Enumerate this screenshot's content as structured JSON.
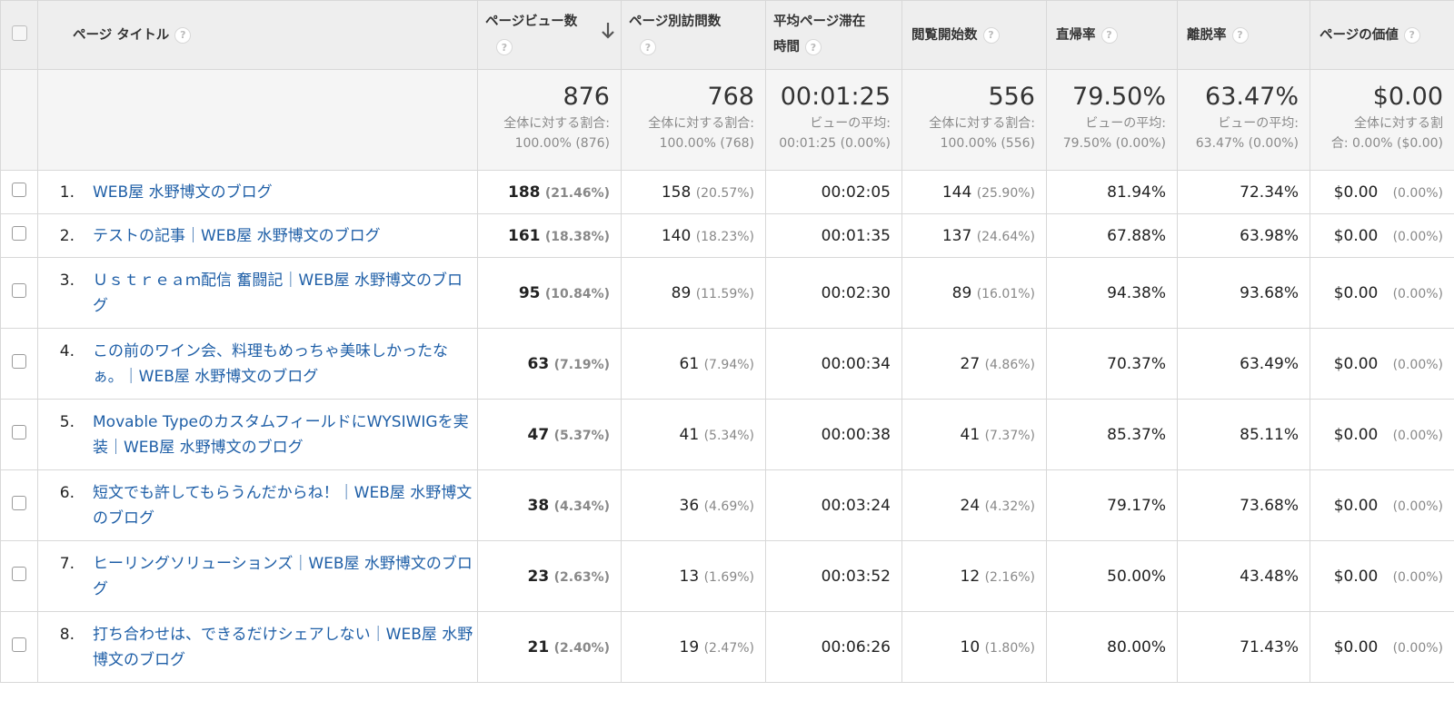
{
  "headers": {
    "page_title": "ページ タイトル",
    "pageviews": "ページビュー数",
    "unique_pageviews": "ページ別訪問数",
    "avg_time_line1": "平均ページ滞在",
    "avg_time_line2": "時間",
    "entrances": "閲覧開始数",
    "bounce_rate": "直帰率",
    "exit_rate": "離脱率",
    "page_value": "ページの価値",
    "help_symbol": "?"
  },
  "summary": {
    "pageviews": {
      "value": "876",
      "sub1": "全体に対する割合:",
      "sub2": "100.00% (876)"
    },
    "unique_pageviews": {
      "value": "768",
      "sub1": "全体に対する割合:",
      "sub2": "100.00% (768)"
    },
    "avg_time": {
      "value": "00:01:25",
      "sub1": "ビューの平均:",
      "sub2": "00:01:25 (0.00%)"
    },
    "entrances": {
      "value": "556",
      "sub1": "全体に対する割合:",
      "sub2": "100.00% (556)"
    },
    "bounce_rate": {
      "value": "79.50%",
      "sub1": "ビューの平均:",
      "sub2": "79.50% (0.00%)"
    },
    "exit_rate": {
      "value": "63.47%",
      "sub1": "ビューの平均:",
      "sub2": "63.47% (0.00%)"
    },
    "page_value": {
      "value": "$0.00",
      "sub1": "全体に対する割",
      "sub2": "合: 0.00% ($0.00)"
    }
  },
  "rows": [
    {
      "idx": "1.",
      "title": "WEB屋 水野博文のブログ",
      "pv": "188",
      "pv_pct": "(21.46%)",
      "upv": "158",
      "upv_pct": "(20.57%)",
      "time": "00:02:05",
      "ent": "144",
      "ent_pct": "(25.90%)",
      "bounce": "81.94%",
      "exit": "72.34%",
      "value": "$0.00",
      "value_pct": "(0.00%)"
    },
    {
      "idx": "2.",
      "title": "テストの記事｜WEB屋 水野博文のブログ",
      "pv": "161",
      "pv_pct": "(18.38%)",
      "upv": "140",
      "upv_pct": "(18.23%)",
      "time": "00:01:35",
      "ent": "137",
      "ent_pct": "(24.64%)",
      "bounce": "67.88%",
      "exit": "63.98%",
      "value": "$0.00",
      "value_pct": "(0.00%)"
    },
    {
      "idx": "3.",
      "title": "Ｕｓｔｒｅａｍ配信 奮闘記｜WEB屋 水野博文のブログ",
      "pv": "95",
      "pv_pct": "(10.84%)",
      "upv": "89",
      "upv_pct": "(11.59%)",
      "time": "00:02:30",
      "ent": "89",
      "ent_pct": "(16.01%)",
      "bounce": "94.38%",
      "exit": "93.68%",
      "value": "$0.00",
      "value_pct": "(0.00%)"
    },
    {
      "idx": "4.",
      "title": "この前のワイン会、料理もめっちゃ美味しかったなぁ。｜WEB屋 水野博文のブログ",
      "pv": "63",
      "pv_pct": "(7.19%)",
      "upv": "61",
      "upv_pct": "(7.94%)",
      "time": "00:00:34",
      "ent": "27",
      "ent_pct": "(4.86%)",
      "bounce": "70.37%",
      "exit": "63.49%",
      "value": "$0.00",
      "value_pct": "(0.00%)"
    },
    {
      "idx": "5.",
      "title": "Movable TypeのカスタムフィールドにWYSIWIGを実装｜WEB屋 水野博文のブログ",
      "pv": "47",
      "pv_pct": "(5.37%)",
      "upv": "41",
      "upv_pct": "(5.34%)",
      "time": "00:00:38",
      "ent": "41",
      "ent_pct": "(7.37%)",
      "bounce": "85.37%",
      "exit": "85.11%",
      "value": "$0.00",
      "value_pct": "(0.00%)"
    },
    {
      "idx": "6.",
      "title": "短文でも許してもらうんだからね！｜WEB屋 水野博文のブログ",
      "pv": "38",
      "pv_pct": "(4.34%)",
      "upv": "36",
      "upv_pct": "(4.69%)",
      "time": "00:03:24",
      "ent": "24",
      "ent_pct": "(4.32%)",
      "bounce": "79.17%",
      "exit": "73.68%",
      "value": "$0.00",
      "value_pct": "(0.00%)"
    },
    {
      "idx": "7.",
      "title": "ヒーリングソリューションズ｜WEB屋 水野博文のブログ",
      "pv": "23",
      "pv_pct": "(2.63%)",
      "upv": "13",
      "upv_pct": "(1.69%)",
      "time": "00:03:52",
      "ent": "12",
      "ent_pct": "(2.16%)",
      "bounce": "50.00%",
      "exit": "43.48%",
      "value": "$0.00",
      "value_pct": "(0.00%)"
    },
    {
      "idx": "8.",
      "title": "打ち合わせは、できるだけシェアしない｜WEB屋 水野博文のブログ",
      "pv": "21",
      "pv_pct": "(2.40%)",
      "upv": "19",
      "upv_pct": "(2.47%)",
      "time": "00:06:26",
      "ent": "10",
      "ent_pct": "(1.80%)",
      "bounce": "80.00%",
      "exit": "71.43%",
      "value": "$0.00",
      "value_pct": "(0.00%)"
    }
  ]
}
